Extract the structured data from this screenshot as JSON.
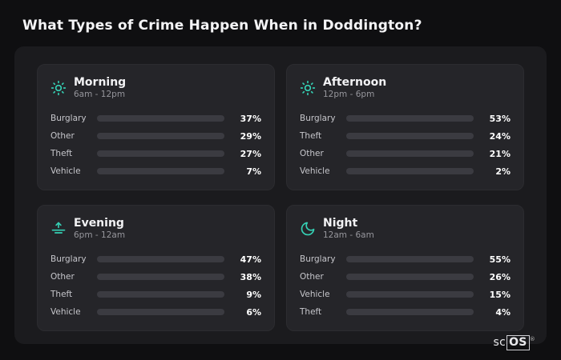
{
  "page": {
    "title": "What Types of Crime Happen When in Doddington?"
  },
  "brand": {
    "sc": "sc",
    "os": "OS",
    "reg": "®"
  },
  "colors": {
    "Burglary": "#e8872e",
    "Other": "#64748b",
    "Theft": "#a855f7",
    "Vehicle": "#3b82f6",
    "accent_icon": "#35d0b4"
  },
  "chart_data": [
    {
      "type": "bar",
      "title": "Morning",
      "subtitle": "6am - 12pm",
      "icon": "sun-icon",
      "categories": [
        "Burglary",
        "Other",
        "Theft",
        "Vehicle"
      ],
      "values": [
        37,
        29,
        27,
        7
      ],
      "value_labels": [
        "37%",
        "29%",
        "27%",
        "7%"
      ],
      "xlim": [
        0,
        100
      ]
    },
    {
      "type": "bar",
      "title": "Afternoon",
      "subtitle": "12pm - 6pm",
      "icon": "sun-icon",
      "categories": [
        "Burglary",
        "Theft",
        "Other",
        "Vehicle"
      ],
      "values": [
        53,
        24,
        21,
        2
      ],
      "value_labels": [
        "53%",
        "24%",
        "21%",
        "2%"
      ],
      "xlim": [
        0,
        100
      ]
    },
    {
      "type": "bar",
      "title": "Evening",
      "subtitle": "6pm - 12am",
      "icon": "sunset-icon",
      "categories": [
        "Burglary",
        "Other",
        "Theft",
        "Vehicle"
      ],
      "values": [
        47,
        38,
        9,
        6
      ],
      "value_labels": [
        "47%",
        "38%",
        "9%",
        "6%"
      ],
      "xlim": [
        0,
        100
      ]
    },
    {
      "type": "bar",
      "title": "Night",
      "subtitle": "12am - 6am",
      "icon": "moon-icon",
      "categories": [
        "Burglary",
        "Other",
        "Vehicle",
        "Theft"
      ],
      "values": [
        55,
        26,
        15,
        4
      ],
      "value_labels": [
        "55%",
        "26%",
        "15%",
        "4%"
      ],
      "xlim": [
        0,
        100
      ]
    }
  ]
}
